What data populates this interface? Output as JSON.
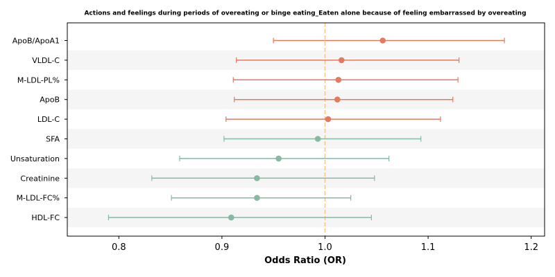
{
  "chart_data": {
    "type": "forest",
    "title": "Actions and feelings during periods of overeating or binge eating_Eaten alone because of feeling embarrassed by overeating",
    "xlabel": "Odds Ratio (OR)",
    "xlim": [
      0.75,
      1.213
    ],
    "xticks": [
      0.8,
      0.9,
      1.0,
      1.1,
      1.2
    ],
    "xtick_labels": [
      "0.8",
      "0.9",
      "1.0",
      "1.1",
      "1.2"
    ],
    "reference_line": 1.0,
    "colors": {
      "positive": "#e07b5f",
      "negative": "#86b9a1",
      "reference": "#f5c98a",
      "band": "#f5f5f5"
    },
    "rows": [
      {
        "label": "ApoB/ApoA1",
        "or": 1.056,
        "lower": 0.95,
        "upper": 1.174,
        "group": "positive"
      },
      {
        "label": "VLDL-C",
        "or": 1.016,
        "lower": 0.914,
        "upper": 1.13,
        "group": "positive"
      },
      {
        "label": "M-LDL-PL%",
        "or": 1.013,
        "lower": 0.911,
        "upper": 1.129,
        "group": "positive"
      },
      {
        "label": "ApoB",
        "or": 1.012,
        "lower": 0.912,
        "upper": 1.124,
        "group": "positive"
      },
      {
        "label": "LDL-C",
        "or": 1.003,
        "lower": 0.904,
        "upper": 1.112,
        "group": "positive"
      },
      {
        "label": "SFA",
        "or": 0.993,
        "lower": 0.902,
        "upper": 1.093,
        "group": "negative"
      },
      {
        "label": "Unsaturation",
        "or": 0.955,
        "lower": 0.859,
        "upper": 1.062,
        "group": "negative"
      },
      {
        "label": "Creatinine",
        "or": 0.934,
        "lower": 0.832,
        "upper": 1.048,
        "group": "negative"
      },
      {
        "label": "M-LDL-FC%",
        "or": 0.934,
        "lower": 0.851,
        "upper": 1.025,
        "group": "negative"
      },
      {
        "label": "HDL-FC",
        "or": 0.909,
        "lower": 0.79,
        "upper": 1.045,
        "group": "negative"
      }
    ]
  }
}
